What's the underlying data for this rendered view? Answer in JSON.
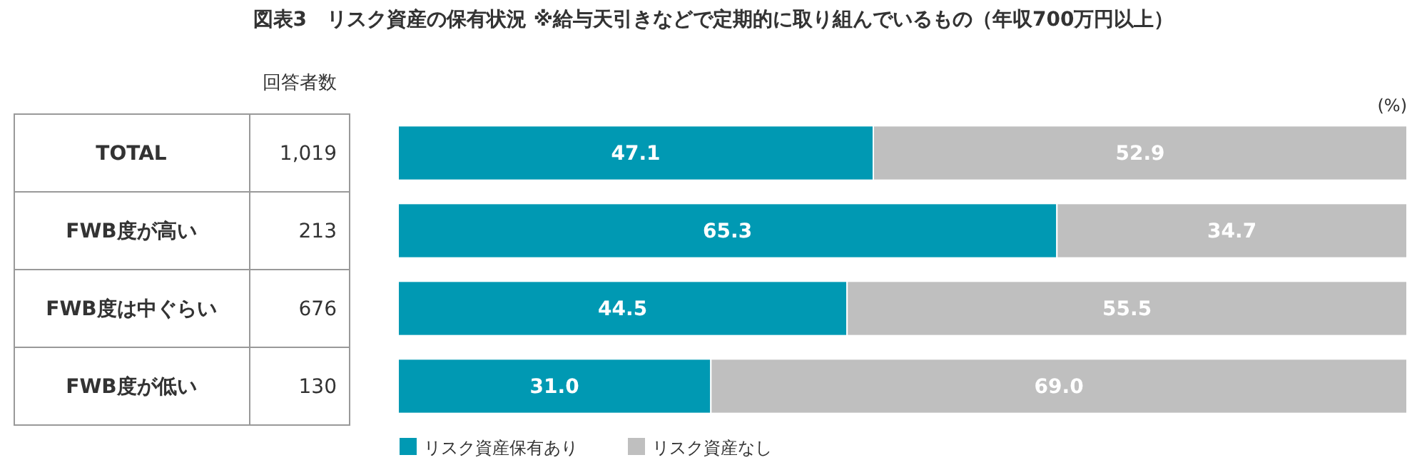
{
  "chart_data": {
    "type": "bar",
    "orientation": "horizontal",
    "stacked": true,
    "title": "図表3　リスク資産の保有状況 ※給与天引きなどで定期的に取り組んでいるもの（年収700万円以上）",
    "xlabel": "(%)",
    "categories": [
      "TOTAL",
      "FWB度が高い",
      "FWB度は中ぐらい",
      "FWB度が低い"
    ],
    "series": [
      {
        "name": "リスク資産保有あり",
        "color": "#0099b3",
        "values": [
          47.1,
          65.3,
          44.5,
          31.0
        ],
        "value_labels": [
          "47.1",
          "65.3",
          "44.5",
          "31.0"
        ]
      },
      {
        "name": "リスク資産なし",
        "color": "#bfbfbf",
        "values": [
          52.9,
          34.7,
          55.5,
          69.0
        ],
        "value_labels": [
          "52.9",
          "34.7",
          "55.5",
          "69.0"
        ]
      }
    ],
    "xlim": [
      0,
      100
    ],
    "tick_labels": "y",
    "legend": "bottom",
    "grid": false,
    "annotations": [
      "回答者数",
      "1,019",
      "213",
      "676",
      "130"
    ]
  }
}
